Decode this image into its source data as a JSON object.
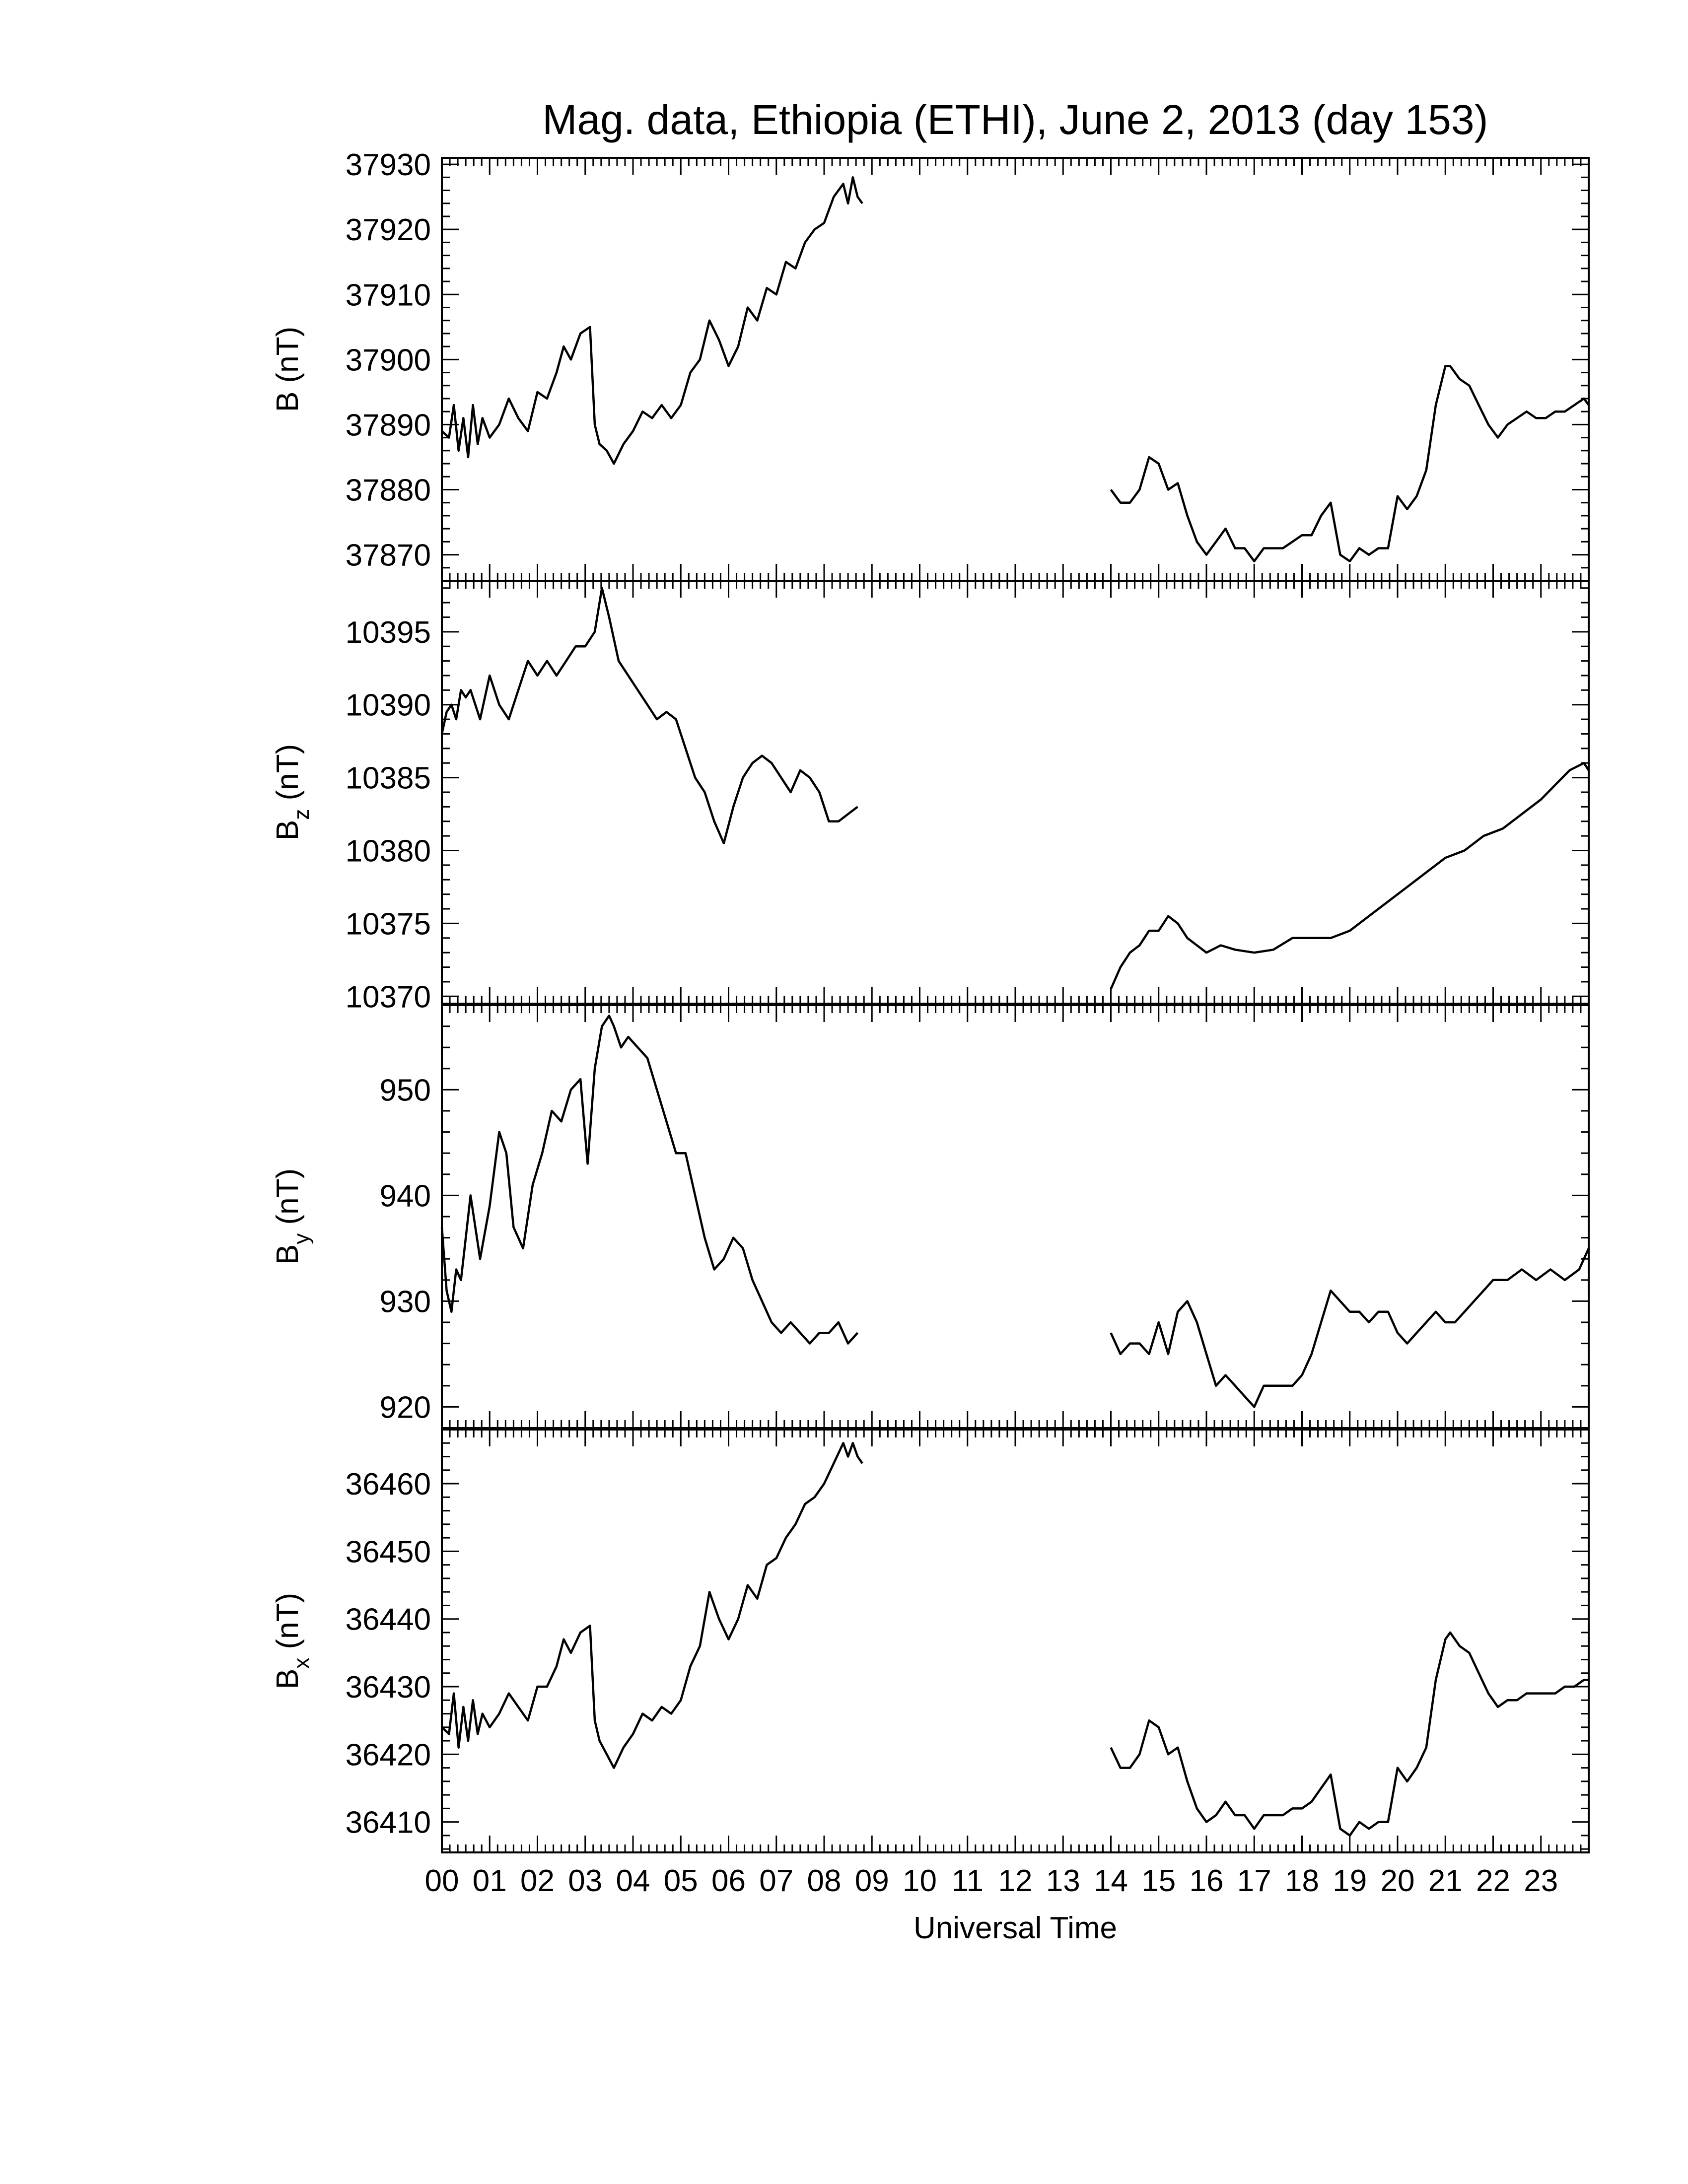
{
  "chart_data": {
    "type": "line",
    "title": "Mag. data, Ethiopia (ETHI), June 2, 2013 (day 153)",
    "xlabel": "Universal Time",
    "xlim": [
      0,
      24
    ],
    "x_tick_labels": [
      "00",
      "01",
      "02",
      "03",
      "04",
      "05",
      "06",
      "07",
      "08",
      "09",
      "10",
      "11",
      "12",
      "13",
      "14",
      "15",
      "16",
      "17",
      "18",
      "19",
      "20",
      "21",
      "22",
      "23"
    ],
    "grid": false,
    "legend": "none",
    "data_gap_hours": [
      8.8,
      14.0
    ],
    "panels": [
      {
        "ylabel": "B (nT)",
        "ylabel_main": "B",
        "ylabel_sub": "",
        "ylabel_unit": "(nT)",
        "ylim": [
          37866,
          37931
        ],
        "yticks": [
          37870,
          37880,
          37890,
          37900,
          37910,
          37920,
          37930
        ],
        "series": [
          {
            "x": [
              0.0,
              0.15,
              0.25,
              0.35,
              0.45,
              0.55,
              0.65,
              0.75,
              0.85,
              1.0,
              1.2,
              1.4,
              1.6,
              1.8,
              2.0,
              2.2,
              2.4,
              2.55,
              2.7,
              2.9,
              3.1,
              3.2,
              3.3,
              3.45,
              3.6,
              3.8,
              4.0,
              4.2,
              4.4,
              4.6,
              4.8,
              5.0,
              5.2,
              5.4,
              5.6,
              5.8,
              6.0,
              6.2,
              6.4,
              6.6,
              6.8,
              7.0,
              7.2,
              7.4,
              7.6,
              7.8,
              8.0,
              8.2,
              8.4,
              8.5,
              8.6,
              8.7,
              8.8
            ],
            "y": [
              37889,
              37888,
              37893,
              37886,
              37891,
              37885,
              37893,
              37887,
              37891,
              37888,
              37890,
              37894,
              37891,
              37889,
              37895,
              37894,
              37898,
              37902,
              37900,
              37904,
              37905,
              37890,
              37887,
              37886,
              37884,
              37887,
              37889,
              37892,
              37891,
              37893,
              37891,
              37893,
              37898,
              37900,
              37906,
              37903,
              37899,
              37902,
              37908,
              37906,
              37911,
              37910,
              37915,
              37914,
              37918,
              37920,
              37921,
              37925,
              37927,
              37924,
              37928,
              37925,
              37924
            ]
          },
          {
            "x": [
              14.0,
              14.2,
              14.4,
              14.6,
              14.8,
              15.0,
              15.2,
              15.4,
              15.6,
              15.8,
              16.0,
              16.2,
              16.4,
              16.6,
              16.8,
              17.0,
              17.2,
              17.4,
              17.6,
              17.8,
              18.0,
              18.2,
              18.4,
              18.6,
              18.8,
              19.0,
              19.2,
              19.4,
              19.6,
              19.8,
              20.0,
              20.2,
              20.4,
              20.6,
              20.8,
              21.0,
              21.1,
              21.3,
              21.5,
              21.7,
              21.9,
              22.1,
              22.3,
              22.5,
              22.7,
              22.9,
              23.1,
              23.3,
              23.5,
              23.7,
              23.9,
              24.0
            ],
            "y": [
              37880,
              37878,
              37878,
              37880,
              37885,
              37884,
              37880,
              37881,
              37876,
              37872,
              37870,
              37872,
              37874,
              37871,
              37871,
              37869,
              37871,
              37871,
              37871,
              37872,
              37873,
              37873,
              37876,
              37878,
              37870,
              37869,
              37871,
              37870,
              37871,
              37871,
              37879,
              37877,
              37879,
              37883,
              37893,
              37899,
              37899,
              37897,
              37896,
              37893,
              37890,
              37888,
              37890,
              37891,
              37892,
              37891,
              37891,
              37892,
              37892,
              37893,
              37894,
              37893
            ]
          }
        ]
      },
      {
        "ylabel": "Bz (nT)",
        "ylabel_main": "B",
        "ylabel_sub": "z",
        "ylabel_unit": "(nT)",
        "ylim": [
          10369.5,
          10398.5
        ],
        "yticks": [
          10370,
          10375,
          10380,
          10385,
          10390,
          10395
        ],
        "series": [
          {
            "x": [
              0.0,
              0.1,
              0.2,
              0.3,
              0.4,
              0.5,
              0.6,
              0.8,
              1.0,
              1.2,
              1.4,
              1.6,
              1.8,
              2.0,
              2.2,
              2.4,
              2.6,
              2.8,
              3.0,
              3.2,
              3.35,
              3.5,
              3.7,
              3.9,
              4.1,
              4.3,
              4.5,
              4.7,
              4.9,
              5.1,
              5.3,
              5.5,
              5.7,
              5.9,
              6.1,
              6.3,
              6.5,
              6.7,
              6.9,
              7.1,
              7.3,
              7.5,
              7.7,
              7.9,
              8.1,
              8.3,
              8.5,
              8.7
            ],
            "y": [
              10388,
              10389.5,
              10390,
              10389,
              10391,
              10390.5,
              10391,
              10389,
              10392,
              10390,
              10389,
              10391,
              10393,
              10392,
              10393,
              10392,
              10393,
              10394,
              10394,
              10395,
              10398,
              10396,
              10393,
              10392,
              10391,
              10390,
              10389,
              10389.5,
              10389,
              10387,
              10385,
              10384,
              10382,
              10380.5,
              10383,
              10385,
              10386,
              10386.5,
              10386,
              10385,
              10384,
              10385.5,
              10385,
              10384,
              10382,
              10382,
              10382.5,
              10383
            ]
          },
          {
            "x": [
              14.0,
              14.2,
              14.4,
              14.6,
              14.8,
              15.0,
              15.2,
              15.4,
              15.6,
              15.8,
              16.0,
              16.3,
              16.6,
              17.0,
              17.4,
              17.8,
              18.2,
              18.6,
              19.0,
              19.4,
              19.8,
              20.2,
              20.6,
              21.0,
              21.4,
              21.8,
              22.2,
              22.6,
              23.0,
              23.3,
              23.6,
              23.9,
              24.0
            ],
            "y": [
              10370.5,
              10372,
              10373,
              10373.5,
              10374.5,
              10374.5,
              10375.5,
              10375,
              10374,
              10373.5,
              10373,
              10373.5,
              10373.2,
              10373,
              10373.2,
              10374,
              10374,
              10374,
              10374.5,
              10375.5,
              10376.5,
              10377.5,
              10378.5,
              10379.5,
              10380,
              10381,
              10381.5,
              10382.5,
              10383.5,
              10384.5,
              10385.5,
              10386,
              10385.5
            ]
          }
        ]
      },
      {
        "ylabel": "By (nT)",
        "ylabel_main": "B",
        "ylabel_sub": "y",
        "ylabel_unit": "(nT)",
        "ylim": [
          918,
          958
        ],
        "yticks": [
          920,
          930,
          940,
          950
        ],
        "series": [
          {
            "x": [
              0.0,
              0.1,
              0.2,
              0.3,
              0.4,
              0.6,
              0.8,
              1.0,
              1.2,
              1.35,
              1.5,
              1.7,
              1.9,
              2.1,
              2.3,
              2.5,
              2.7,
              2.9,
              3.05,
              3.2,
              3.35,
              3.5,
              3.6,
              3.75,
              3.9,
              4.1,
              4.3,
              4.5,
              4.7,
              4.9,
              5.1,
              5.3,
              5.5,
              5.7,
              5.9,
              6.1,
              6.3,
              6.5,
              6.7,
              6.9,
              7.1,
              7.3,
              7.5,
              7.7,
              7.9,
              8.1,
              8.3,
              8.5,
              8.7
            ],
            "y": [
              937,
              931,
              929,
              933,
              932,
              940,
              934,
              939,
              946,
              944,
              937,
              935,
              941,
              944,
              948,
              947,
              950,
              951,
              943,
              952,
              956,
              957,
              956,
              954,
              955,
              954,
              953,
              950,
              947,
              944,
              944,
              940,
              936,
              933,
              934,
              936,
              935,
              932,
              930,
              928,
              927,
              928,
              927,
              926,
              927,
              927,
              928,
              926,
              927
            ]
          },
          {
            "x": [
              14.0,
              14.2,
              14.4,
              14.6,
              14.8,
              15.0,
              15.2,
              15.4,
              15.6,
              15.8,
              16.0,
              16.2,
              16.4,
              16.6,
              16.8,
              17.0,
              17.2,
              17.4,
              17.6,
              17.8,
              18.0,
              18.2,
              18.4,
              18.6,
              18.8,
              19.0,
              19.2,
              19.4,
              19.6,
              19.8,
              20.0,
              20.2,
              20.4,
              20.6,
              20.8,
              21.0,
              21.2,
              21.4,
              21.6,
              21.8,
              22.0,
              22.3,
              22.6,
              22.9,
              23.2,
              23.5,
              23.8,
              24.0
            ],
            "y": [
              927,
              925,
              926,
              926,
              925,
              928,
              925,
              929,
              930,
              928,
              925,
              922,
              923,
              922,
              921,
              920,
              922,
              922,
              922,
              922,
              923,
              925,
              928,
              931,
              930,
              929,
              929,
              928,
              929,
              929,
              927,
              926,
              927,
              928,
              929,
              928,
              928,
              929,
              930,
              931,
              932,
              932,
              933,
              932,
              933,
              932,
              933,
              935
            ]
          }
        ]
      },
      {
        "ylabel": "Bx (nT)",
        "ylabel_main": "B",
        "ylabel_sub": "x",
        "ylabel_unit": "(nT)",
        "ylim": [
          36405.5,
          36468
        ],
        "yticks": [
          36410,
          36420,
          36430,
          36440,
          36450,
          36460
        ],
        "series": [
          {
            "x": [
              0.0,
              0.15,
              0.25,
              0.35,
              0.45,
              0.55,
              0.65,
              0.75,
              0.85,
              1.0,
              1.2,
              1.4,
              1.6,
              1.8,
              2.0,
              2.2,
              2.4,
              2.55,
              2.7,
              2.9,
              3.1,
              3.2,
              3.3,
              3.45,
              3.6,
              3.8,
              4.0,
              4.2,
              4.4,
              4.6,
              4.8,
              5.0,
              5.2,
              5.4,
              5.6,
              5.8,
              6.0,
              6.2,
              6.4,
              6.6,
              6.8,
              7.0,
              7.2,
              7.4,
              7.6,
              7.8,
              8.0,
              8.2,
              8.4,
              8.5,
              8.6,
              8.7,
              8.8
            ],
            "y": [
              36424,
              36423,
              36429,
              36421,
              36427,
              36422,
              36428,
              36423,
              36426,
              36424,
              36426,
              36429,
              36427,
              36425,
              36430,
              36430,
              36433,
              36437,
              36435,
              36438,
              36439,
              36425,
              36422,
              36420,
              36418,
              36421,
              36423,
              36426,
              36425,
              36427,
              36426,
              36428,
              36433,
              36436,
              36444,
              36440,
              36437,
              36440,
              36445,
              36443,
              36448,
              36449,
              36452,
              36454,
              36457,
              36458,
              36460,
              36463,
              36466,
              36464,
              36466,
              36464,
              36463
            ]
          },
          {
            "x": [
              14.0,
              14.2,
              14.4,
              14.6,
              14.8,
              15.0,
              15.2,
              15.4,
              15.6,
              15.8,
              16.0,
              16.2,
              16.4,
              16.6,
              16.8,
              17.0,
              17.2,
              17.4,
              17.6,
              17.8,
              18.0,
              18.2,
              18.4,
              18.6,
              18.8,
              19.0,
              19.2,
              19.4,
              19.6,
              19.8,
              20.0,
              20.2,
              20.4,
              20.6,
              20.8,
              21.0,
              21.1,
              21.3,
              21.5,
              21.7,
              21.9,
              22.1,
              22.3,
              22.5,
              22.7,
              22.9,
              23.1,
              23.3,
              23.5,
              23.7,
              23.9,
              24.0
            ],
            "y": [
              36421,
              36418,
              36418,
              36420,
              36425,
              36424,
              36420,
              36421,
              36416,
              36412,
              36410,
              36411,
              36413,
              36411,
              36411,
              36409,
              36411,
              36411,
              36411,
              36412,
              36412,
              36413,
              36415,
              36417,
              36409,
              36408,
              36410,
              36409,
              36410,
              36410,
              36418,
              36416,
              36418,
              36421,
              36431,
              36437,
              36438,
              36436,
              36435,
              36432,
              36429,
              36427,
              36428,
              36428,
              36429,
              36429,
              36429,
              36429,
              36430,
              36430,
              36431,
              36431
            ]
          }
        ]
      }
    ]
  }
}
